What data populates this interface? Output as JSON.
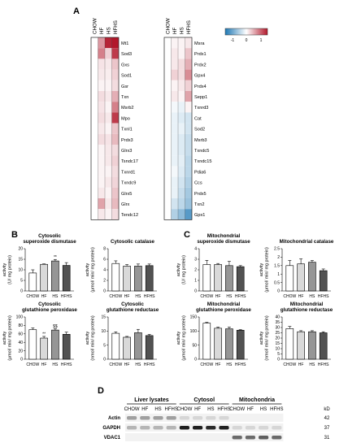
{
  "panels": {
    "a": "A",
    "b": "B",
    "c": "C",
    "d": "D"
  },
  "heatmap": {
    "columns": [
      "CHOW",
      "HF",
      "HS",
      "HFHS"
    ],
    "legend": {
      "min": "-1",
      "mid": "0",
      "max": "1",
      "low_color": "#1f78b4",
      "mid_color": "#ffffff",
      "high_color": "#b2182b"
    },
    "left": {
      "genes": [
        "Mt1",
        "Sod3",
        "Gxs",
        "Sod1",
        "Gsr",
        "Txn",
        "Msrb2",
        "Mpo",
        "Txnl1",
        "Prdx3",
        "Glrx3",
        "Tsndc17",
        "Txnrd1",
        "Txndc9",
        "Glrx5",
        "Glrx",
        "Tendc12"
      ],
      "values": [
        [
          0,
          0.45,
          0.95,
          1.0
        ],
        [
          0,
          0.55,
          0.2,
          0.85
        ],
        [
          0,
          0.12,
          0.1,
          0.25
        ],
        [
          0,
          0.1,
          0.08,
          0.2
        ],
        [
          0,
          0.05,
          0.05,
          0.15
        ],
        [
          0,
          0.15,
          0.1,
          0.35
        ],
        [
          0,
          0.12,
          0.05,
          0.55
        ],
        [
          0,
          0.15,
          0.1,
          0.85
        ],
        [
          0,
          0.1,
          0.05,
          0.25
        ],
        [
          0,
          0.15,
          0.12,
          0.3
        ],
        [
          0,
          0.05,
          0.1,
          0.15
        ],
        [
          0,
          0.05,
          0.1,
          0.2
        ],
        [
          0,
          0.05,
          0.05,
          0.15
        ],
        [
          0,
          0.05,
          0.1,
          0.18
        ],
        [
          0,
          0.1,
          0.05,
          0.25
        ],
        [
          0,
          0.4,
          0.1,
          0.3
        ],
        [
          0,
          0.1,
          0.05,
          0.15
        ]
      ]
    },
    "right": {
      "genes": [
        "Msra",
        "Prdx1",
        "Prdx2",
        "Gpx4",
        "Prdx4",
        "Sepp1",
        "Txnrd3",
        "Cat",
        "Sod2",
        "Msrb3",
        "Txndc5",
        "Txndc15",
        "Pdia6",
        "Ccs",
        "Prdx5",
        "Txn2",
        "Gpx1"
      ],
      "values": [
        [
          0,
          0.05,
          0.05,
          0.1
        ],
        [
          0,
          0.1,
          0.05,
          0.25
        ],
        [
          0,
          0.1,
          0.15,
          0.35
        ],
        [
          0,
          0.2,
          0.15,
          0.5
        ],
        [
          0,
          0.05,
          0.1,
          0.2
        ],
        [
          0,
          0.1,
          0.05,
          0.4
        ],
        [
          0,
          -0.05,
          -0.1,
          0.05
        ],
        [
          0,
          -0.1,
          -0.15,
          -0.2
        ],
        [
          0,
          -0.1,
          -0.1,
          -0.2
        ],
        [
          0,
          -0.1,
          -0.15,
          -0.25
        ],
        [
          0,
          -0.1,
          -0.15,
          -0.25
        ],
        [
          0,
          -0.1,
          -0.12,
          -0.3
        ],
        [
          0,
          -0.05,
          -0.15,
          -0.3
        ],
        [
          0,
          -0.1,
          -0.2,
          -0.35
        ],
        [
          0,
          -0.1,
          -0.25,
          -0.4
        ],
        [
          0,
          -0.2,
          -0.3,
          -0.45
        ],
        [
          0,
          -0.35,
          -0.5,
          -0.75
        ]
      ]
    }
  },
  "chart_data": [
    {
      "type": "bar",
      "id": "b1",
      "title": "Cytosolic\nsuperoxide dismutase",
      "ylabel": "activity\n(U/ mg protein)",
      "categories": [
        "CHOW",
        "HF",
        "HS",
        "HFHS"
      ],
      "values": [
        8.5,
        12.6,
        14.2,
        12.1
      ],
      "errors": [
        1.5,
        0.2,
        0.7,
        1.3
      ],
      "ylim": [
        0,
        20
      ],
      "yticks": [
        0,
        5,
        10,
        15,
        20
      ],
      "annotations": [
        "",
        "",
        "**",
        ""
      ]
    },
    {
      "type": "bar",
      "id": "b2",
      "title": "Cytosolic catalase",
      "ylabel": "activity\n(µmol/ min/ mg protein)",
      "categories": [
        "CHOW",
        "HF",
        "HS",
        "HFHS"
      ],
      "values": [
        5.2,
        4.7,
        4.7,
        4.8
      ],
      "errors": [
        0.5,
        0.3,
        0.4,
        0.3
      ],
      "ylim": [
        0,
        8
      ],
      "yticks": [
        0,
        2,
        4,
        6,
        8
      ],
      "annotations": [
        "",
        "",
        "",
        ""
      ]
    },
    {
      "type": "bar",
      "id": "b3",
      "title": "Cytosolic\nglutathione peroxidase",
      "ylabel": "activity\n(µmol/ min/ mg protein)",
      "categories": [
        "CHOW",
        "HF",
        "HS",
        "HFHS"
      ],
      "values": [
        70,
        50,
        69,
        59
      ],
      "errors": [
        4,
        4,
        3,
        5
      ],
      "ylim": [
        0,
        100
      ],
      "yticks": [
        0,
        20,
        40,
        60,
        80,
        100
      ],
      "annotations": [
        "",
        "**",
        "$$",
        ""
      ]
    },
    {
      "type": "bar",
      "id": "b4",
      "title": "Cytosolic\nglutathione reductase",
      "ylabel": "activity\n(nmol/ min/ mg protein)",
      "categories": [
        "CHOW",
        "HF",
        "HS",
        "HFHS"
      ],
      "values": [
        9.2,
        7.8,
        9.4,
        8.4
      ],
      "errors": [
        0.5,
        0.3,
        1.2,
        0.4
      ],
      "ylim": [
        0,
        15
      ],
      "yticks": [
        0,
        5,
        10,
        15
      ],
      "annotations": [
        "",
        "",
        "",
        ""
      ]
    },
    {
      "type": "bar",
      "id": "c1",
      "title": "Mitochondrial\nsuperoxide dismutase",
      "ylabel": "activity\n(U/ mg protein)",
      "categories": [
        "CHOW",
        "HF",
        "HS",
        "HFHS"
      ],
      "values": [
        2.5,
        2.5,
        2.4,
        2.3
      ],
      "errors": [
        0.4,
        0.1,
        0.4,
        0.1
      ],
      "ylim": [
        0,
        4
      ],
      "yticks": [
        0,
        1,
        2,
        3,
        4
      ],
      "annotations": [
        "",
        "",
        "",
        ""
      ]
    },
    {
      "type": "bar",
      "id": "c2",
      "title": "Mitochondrial catalase",
      "ylabel": "activity\n(µmol/ min/ mg protein)",
      "categories": [
        "CHOW",
        "HF",
        "HS",
        "HFHS"
      ],
      "values": [
        1.5,
        1.6,
        1.7,
        1.2
      ],
      "errors": [
        0.3,
        0.3,
        0.1,
        0.1
      ],
      "ylim": [
        0,
        2.5
      ],
      "yticks": [
        0,
        0.5,
        1,
        1.5,
        2,
        2.5
      ],
      "annotations": [
        "",
        "",
        "",
        ""
      ]
    },
    {
      "type": "bar",
      "id": "c3",
      "title": "Mitochondrial\nglutathione peroxidase",
      "ylabel": "activity\n(µmol/ min/ mg protein)",
      "categories": [
        "CHOW",
        "HF",
        "HS",
        "HFHS"
      ],
      "values": [
        128,
        110,
        108,
        103
      ],
      "errors": [
        3,
        4,
        6,
        2
      ],
      "ylim": [
        0,
        150
      ],
      "yticks": [
        0,
        50,
        100,
        150
      ],
      "annotations": [
        "",
        "",
        "",
        ""
      ]
    },
    {
      "type": "bar",
      "id": "c4",
      "title": "Mitochondrial\nglutathione reductase",
      "ylabel": "activity\n(nmol/ min/ mg protein)",
      "categories": [
        "CHOW",
        "HF",
        "HS",
        "HFHS"
      ],
      "values": [
        29,
        26,
        26,
        25
      ],
      "errors": [
        2,
        1,
        1,
        1
      ],
      "ylim": [
        0,
        40
      ],
      "yticks": [
        0,
        5,
        10,
        15,
        20,
        25,
        30,
        35,
        40
      ],
      "annotations": [
        "",
        "",
        "",
        ""
      ]
    }
  ],
  "bar_colors": [
    "#ffffff",
    "#d9d9d9",
    "#969696",
    "#525252"
  ],
  "western": {
    "groups": [
      "Liver lysates",
      "Cytosol",
      "Mitochondria"
    ],
    "lanes": [
      "CHOW",
      "HF",
      "HS",
      "HFHS",
      "CHOW",
      "HF",
      "HS",
      "HFHS",
      "CHOW",
      "HF",
      "HS",
      "HFHS"
    ],
    "kd_label": "kD",
    "rows": [
      {
        "name": "Actin",
        "kd": "42",
        "intensity": [
          0.35,
          0.35,
          0.35,
          0.35,
          0.1,
          0.1,
          0.1,
          0.1,
          0,
          0,
          0,
          0
        ]
      },
      {
        "name": "GAPDH",
        "kd": "37",
        "intensity": [
          0.25,
          0.25,
          0.25,
          0.25,
          0.95,
          0.95,
          0.9,
          0.95,
          0.1,
          0.1,
          0.1,
          0.1
        ]
      },
      {
        "name": "VDAC1",
        "kd": "31",
        "intensity": [
          0,
          0,
          0,
          0,
          0,
          0,
          0,
          0,
          0.6,
          0.6,
          0.65,
          0.6
        ]
      }
    ]
  }
}
